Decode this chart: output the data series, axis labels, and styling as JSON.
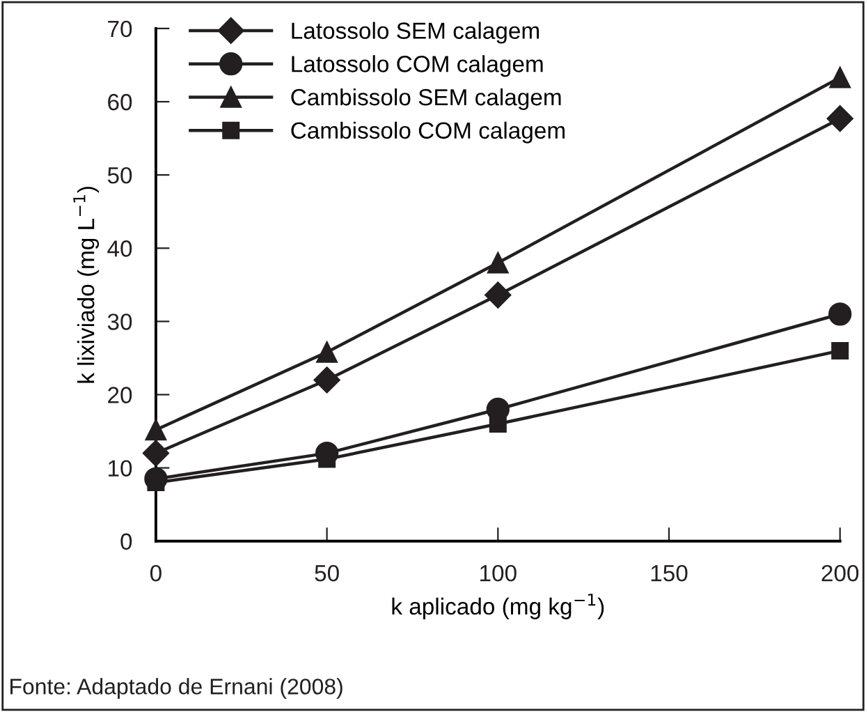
{
  "chart_data": {
    "type": "line",
    "xlabel": "k aplicado (mg kg$^{−1}$)",
    "ylabel": "k lixiviado (mg L$^{−1}$)",
    "x": [
      0,
      50,
      100,
      200
    ],
    "series": [
      {
        "name": "Latossolo SEM calagem",
        "color": "#231f20",
        "marker": "diamond",
        "values": [
          12,
          22,
          33.6,
          57.7
        ]
      },
      {
        "name": "Latossolo COM calagem",
        "color": "#231f20",
        "marker": "circle",
        "values": [
          8.5,
          12,
          18,
          31
        ]
      },
      {
        "name": "Cambissolo SEM calagem",
        "color": "#231f20",
        "marker": "triangle",
        "values": [
          15.2,
          25.8,
          38,
          63.3
        ]
      },
      {
        "name": "Cambissolo COM calagem",
        "color": "#231f20",
        "marker": "square",
        "values": [
          8,
          11.2,
          16,
          26
        ]
      }
    ],
    "xlim": [
      0,
      200
    ],
    "xticks": [
      0,
      50,
      100,
      150,
      200
    ],
    "ylim": [
      0,
      70
    ],
    "yticks": [
      0,
      10,
      20,
      30,
      40,
      50,
      60,
      70
    ],
    "grid": false,
    "legend": "top left",
    "line_style": "solid",
    "annotations": [
      "Fonte: Adaptado de Ernani (2008)"
    ]
  }
}
